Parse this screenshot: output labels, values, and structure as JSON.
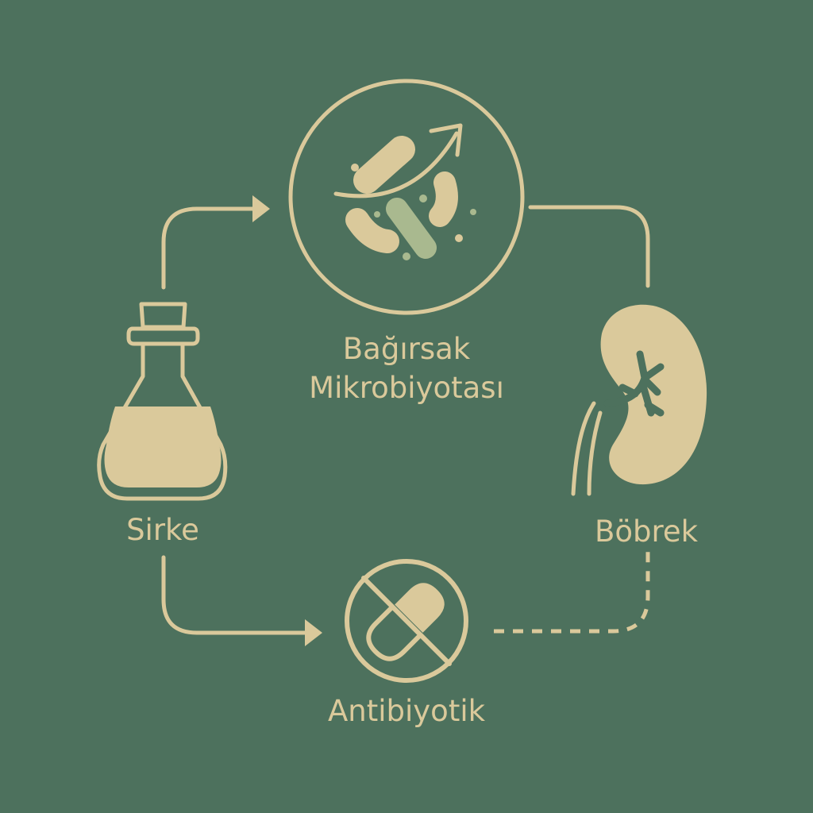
{
  "diagram": {
    "palette": {
      "background": "#4d715d",
      "ink": "#dac99b",
      "accent": "#a9b98f"
    },
    "nodes": {
      "gut": {
        "label_line1": "Bağırsak",
        "label_line2": "Mikrobiyotası",
        "icon": "bacteria-microbiota-icon"
      },
      "vinegar": {
        "label": "Sirke",
        "icon": "vinegar-bottle-icon"
      },
      "kidney": {
        "label": "Böbrek",
        "icon": "kidney-icon"
      },
      "antibiotic": {
        "label": "Antibiyotik",
        "icon": "no-pill-icon"
      }
    },
    "connectors": [
      {
        "from": "vinegar",
        "to": "gut",
        "style": "solid",
        "arrow": true
      },
      {
        "from": "gut",
        "to": "kidney",
        "style": "solid",
        "arrow": false
      },
      {
        "from": "vinegar",
        "to": "antibiotic",
        "style": "solid",
        "arrow": true
      },
      {
        "from": "antibiotic",
        "to": "kidney",
        "style": "dashed",
        "arrow": false
      }
    ]
  }
}
